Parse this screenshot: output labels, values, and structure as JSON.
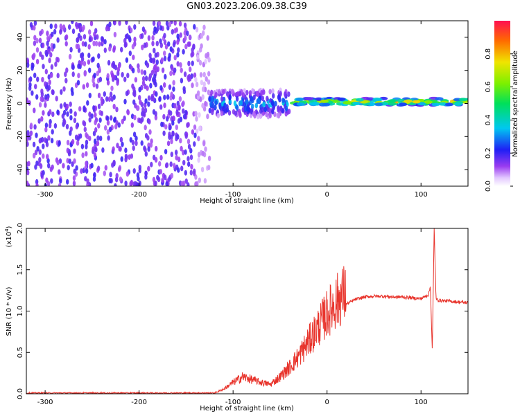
{
  "title": "GN03.2023.206.09.38.C39",
  "colors": {
    "snr_line": "#e8342c",
    "spectro_base": "#7a1ff0",
    "axis": "#000000",
    "background": "#ffffff"
  },
  "chart_data": [
    {
      "type": "heatmap",
      "title": "GN03.2023.206.09.38.C39",
      "xlabel": "Height of straight line (km)",
      "ylabel": "Frequency (Hz)",
      "xlim": [
        -320,
        150
      ],
      "ylim": [
        -50,
        50
      ],
      "x_ticks": [
        -300,
        -200,
        -100,
        0,
        100
      ],
      "x_tick_labels": [
        "-300",
        "-200",
        "-100",
        "0",
        "100"
      ],
      "y_ticks": [
        -40,
        -20,
        0,
        20,
        40
      ],
      "y_tick_labels": [
        "-40",
        "-20",
        "0",
        "20",
        "40"
      ],
      "colorbar": {
        "label": "Normalized spectral amplitude",
        "range": [
          0.0,
          1.0
        ],
        "ticks": [
          0.0,
          0.2,
          0.4,
          0.6,
          0.8
        ],
        "tick_labels": [
          "0.0",
          "0.2",
          "0.4",
          "0.6",
          "0.8"
        ],
        "colormap": "rainbow (white-purple-blue-cyan-green-yellow-red)"
      },
      "regions": [
        {
          "x_range": [
            -320,
            -125
          ],
          "freq_range": [
            -50,
            50
          ],
          "amplitude": 0.1,
          "pattern": "broadband noise"
        },
        {
          "x_range": [
            -125,
            -40
          ],
          "freq_center": 0,
          "freq_halfwidth": 8,
          "amplitude": 0.35,
          "pattern": "turbulent band"
        },
        {
          "x_range": [
            -40,
            150
          ],
          "freq_center": 1,
          "freq_halfwidth": 2,
          "amplitude": 0.85,
          "pattern": "narrow tone"
        }
      ],
      "grid": false
    },
    {
      "type": "line",
      "title": "",
      "xlabel": "Height of straight line (km)",
      "ylabel": "SNR (10 * v/v)",
      "y_multiplier_label": "(x10",
      "y_multiplier_exp": "4",
      "y_multiplier_close": ")",
      "xlim": [
        -320,
        150
      ],
      "ylim": [
        0.0,
        2.0
      ],
      "x_ticks": [
        -300,
        -200,
        -100,
        0,
        100
      ],
      "x_tick_labels": [
        "-300",
        "-200",
        "-100",
        "0",
        "100"
      ],
      "y_ticks": [
        0.0,
        0.5,
        1.0,
        1.5,
        2.0
      ],
      "y_tick_labels": [
        "0.0",
        "0.5",
        "1.0",
        "1.5",
        "2.0"
      ],
      "grid": false,
      "series": [
        {
          "x": [
            -320,
            -280,
            -240,
            -200,
            -160,
            -120,
            -110,
            -100,
            -90,
            -80,
            -70,
            -60,
            -50,
            -40,
            -30,
            -20,
            -10,
            0,
            10,
            20,
            30,
            40,
            50,
            60,
            70,
            80,
            90,
            100,
            108,
            110,
            112,
            114,
            116,
            120,
            130,
            140,
            150
          ],
          "y": [
            0.01,
            0.01,
            0.01,
            0.01,
            0.01,
            0.01,
            0.05,
            0.12,
            0.18,
            0.15,
            0.12,
            0.1,
            0.18,
            0.28,
            0.4,
            0.55,
            0.7,
            0.85,
            0.98,
            1.08,
            1.14,
            1.17,
            1.18,
            1.18,
            1.17,
            1.17,
            1.16,
            1.15,
            1.2,
            1.3,
            0.5,
            2.0,
            1.14,
            1.13,
            1.12,
            1.11,
            1.1
          ]
        }
      ]
    }
  ]
}
